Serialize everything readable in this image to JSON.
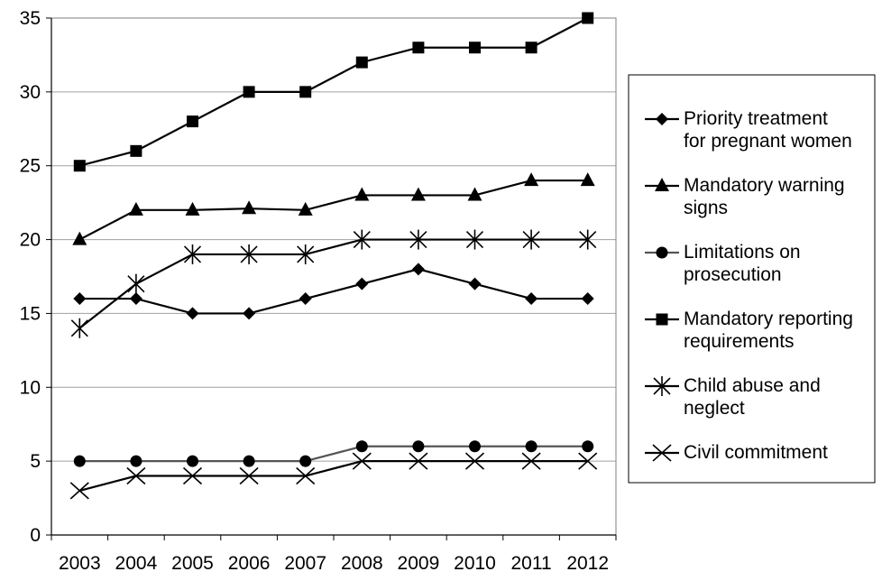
{
  "chart_data": {
    "type": "line",
    "x": [
      "2003",
      "2004",
      "2005",
      "2006",
      "2007",
      "2008",
      "2009",
      "2010",
      "2011",
      "2012"
    ],
    "ylim": [
      0,
      35
    ],
    "yticks": [
      0,
      5,
      10,
      15,
      20,
      25,
      30,
      35
    ],
    "grid": true,
    "legend_position": "right",
    "series": [
      {
        "name": "Priority treatment for pregnant women",
        "marker": "diamond",
        "color": "#000000",
        "values": [
          16,
          16,
          15,
          15,
          16,
          17,
          18,
          17,
          16,
          16
        ]
      },
      {
        "name": "Mandatory warning signs",
        "marker": "triangle",
        "color": "#000000",
        "values": [
          20,
          22,
          22,
          22.1,
          22,
          23,
          23,
          23,
          24,
          24
        ]
      },
      {
        "name": "Limitations on prosecution",
        "marker": "circle",
        "color": "#555555",
        "values": [
          5,
          5,
          5,
          5,
          5,
          6,
          6,
          6,
          6,
          6
        ]
      },
      {
        "name": "Mandatory reporting requirements",
        "marker": "square",
        "color": "#000000",
        "values": [
          25,
          26,
          28,
          30,
          30,
          32,
          33,
          33,
          33,
          35
        ]
      },
      {
        "name": "Child abuse and neglect",
        "marker": "asterisk",
        "color": "#000000",
        "values": [
          14,
          17,
          19,
          19,
          19,
          20,
          20,
          20,
          20,
          20
        ]
      },
      {
        "name": "Civil commitment",
        "marker": "x",
        "color": "#000000",
        "values": [
          3,
          4,
          4,
          4,
          4,
          5,
          5,
          5,
          5,
          5
        ]
      }
    ]
  }
}
